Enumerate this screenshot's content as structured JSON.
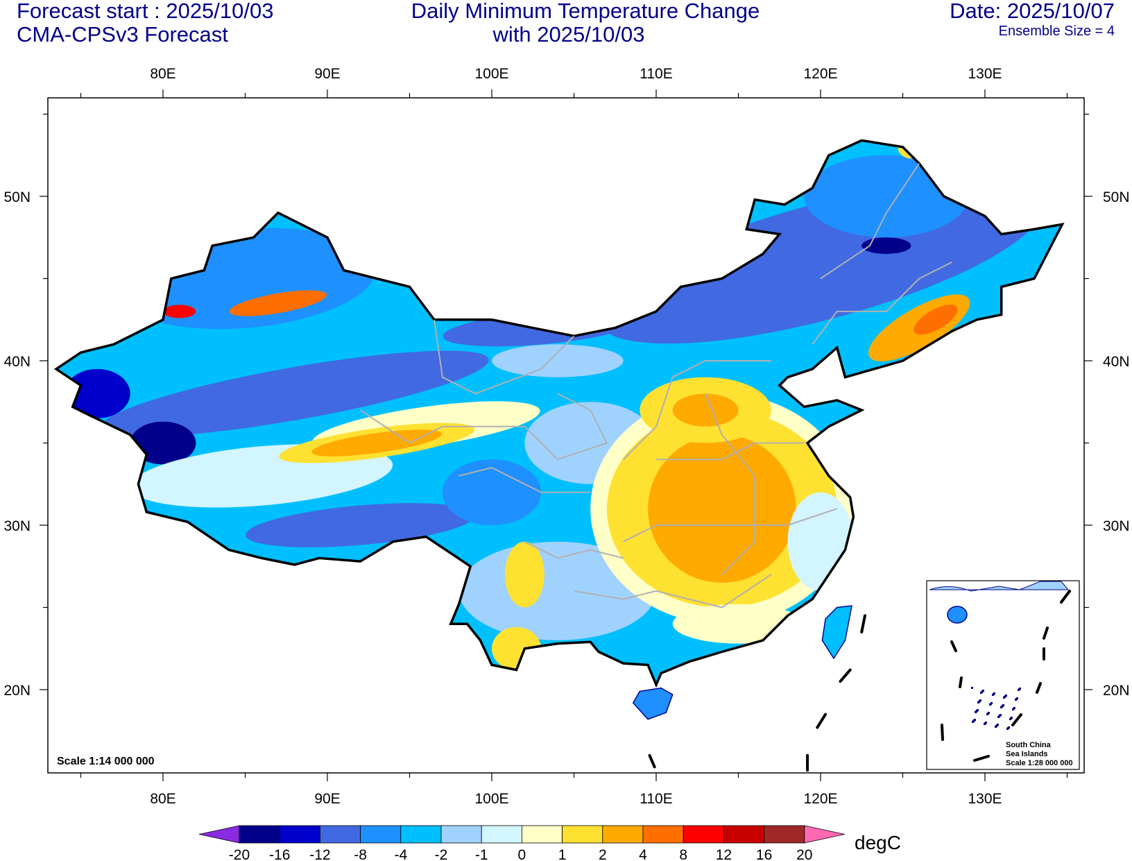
{
  "header": {
    "left_line1": "Forecast start : 2025/10/03",
    "left_line2": "CMA-CPSv3 Forecast",
    "title_line1": "Daily Minimum Temperature Change",
    "title_line2": "with 2025/10/03",
    "date": "Date: 2025/10/07",
    "ensemble": "Ensemble Size = 4"
  },
  "axes": {
    "lon_labels": [
      "80E",
      "90E",
      "100E",
      "110E",
      "120E",
      "130E"
    ],
    "lon_values": [
      80,
      90,
      100,
      110,
      120,
      130
    ],
    "lat_labels": [
      "50N",
      "40N",
      "30N",
      "20N"
    ],
    "lat_values": [
      50,
      40,
      30,
      20
    ]
  },
  "map": {
    "scale": "Scale 1:14 000 000",
    "inset_line1": "South China",
    "inset_line2": "Sea Islands",
    "inset_line3": "Scale 1:28 000 000"
  },
  "colorbar": {
    "unit": "degC",
    "labels": [
      "-20",
      "-16",
      "-12",
      "-8",
      "-4",
      "-2",
      "-1",
      "0",
      "1",
      "2",
      "4",
      "8",
      "12",
      "16",
      "20"
    ],
    "colors": [
      "#00008b",
      "#0000cd",
      "#4169e1",
      "#1e90ff",
      "#00bfff",
      "#a0d2ff",
      "#d2f5ff",
      "#ffffc8",
      "#ffe132",
      "#ffaa00",
      "#ff6e00",
      "#ff0000",
      "#c80000",
      "#a02828"
    ],
    "low_color": "#8a2be2",
    "high_color": "#ff69b4"
  }
}
